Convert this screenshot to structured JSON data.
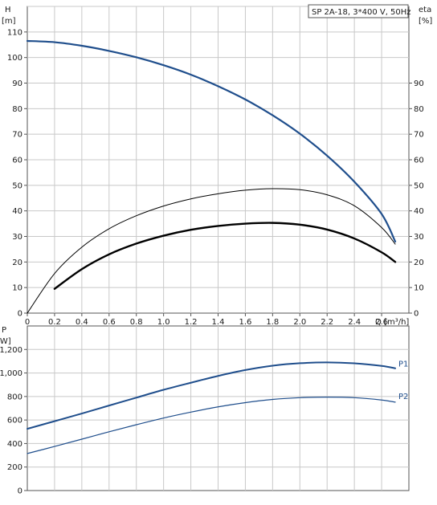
{
  "chart_data": [
    {
      "type": "line",
      "title": "SP 2A-18, 3*400 V, 50Hz",
      "xlabel": "Q [m³/h]",
      "ylabel_left_top": "H",
      "ylabel_left_unit": "[m]",
      "ylabel_right_top": "eta",
      "ylabel_right_unit": "[%]",
      "xlim": [
        0,
        2.8
      ],
      "ylim_left": [
        0,
        120
      ],
      "ylim_right": [
        0,
        120
      ],
      "x_ticks": [
        0,
        0.2,
        0.4,
        0.6,
        0.8,
        1.0,
        1.2,
        1.4,
        1.6,
        1.8,
        2.0,
        2.2,
        2.4,
        2.6
      ],
      "x_tick_labels": [
        "0",
        "0.2",
        "0.4",
        "0.6",
        "0.8",
        "1.0",
        "1.2",
        "1.4",
        "1.6",
        "1.8",
        "2.0",
        "2.2",
        "2.4",
        "2.6"
      ],
      "y_left_ticks": [
        0,
        10,
        20,
        30,
        40,
        50,
        60,
        70,
        80,
        90,
        100,
        110
      ],
      "y_right_ticks": [
        0,
        10,
        20,
        30,
        40,
        50,
        60,
        70,
        80,
        90
      ],
      "grid": true,
      "series": [
        {
          "color": "#1f4e8c",
          "axis": "left",
          "x": [
            0,
            0.2,
            0.4,
            0.6,
            0.8,
            1.0,
            1.2,
            1.4,
            1.6,
            1.8,
            2.0,
            2.2,
            2.4,
            2.6,
            2.7
          ],
          "y": [
            106.5,
            106.0,
            104.6,
            102.6,
            100.1,
            97.0,
            93.3,
            88.8,
            83.6,
            77.4,
            70.2,
            61.6,
            51.4,
            38.8,
            28
          ]
        },
        {
          "color": "#000000",
          "axis": "right",
          "x": [
            0,
            0.2,
            0.4,
            0.6,
            0.8,
            1.0,
            1.2,
            1.4,
            1.6,
            1.8,
            2.0,
            2.2,
            2.4,
            2.6,
            2.7
          ],
          "y": [
            0,
            15.5,
            25.8,
            33.0,
            38.1,
            41.9,
            44.7,
            46.7,
            48.1,
            48.7,
            48.3,
            46.3,
            42.0,
            33.5,
            27
          ]
        },
        {
          "color": "#000000",
          "axis": "right",
          "x": [
            0.2,
            0.4,
            0.6,
            0.8,
            1.0,
            1.2,
            1.4,
            1.6,
            1.8,
            2.0,
            2.2,
            2.4,
            2.6,
            2.7
          ],
          "y": [
            9.5,
            17.2,
            23.0,
            27.2,
            30.3,
            32.6,
            34.1,
            35.0,
            35.3,
            34.6,
            32.7,
            29.2,
            23.8,
            20.0
          ]
        }
      ]
    },
    {
      "type": "line",
      "ylabel_top": "P",
      "ylabel_unit": "[W]",
      "xlim": [
        0,
        2.8
      ],
      "ylim": [
        0,
        1400
      ],
      "y_ticks": [
        0,
        200,
        400,
        600,
        800,
        1000,
        1200
      ],
      "y_tick_labels": [
        "0",
        "200",
        "400",
        "600",
        "800",
        "1,000",
        "1,200"
      ],
      "grid": true,
      "series": [
        {
          "name": "P1",
          "color": "#1f4e8c",
          "x": [
            0,
            0.2,
            0.4,
            0.6,
            0.8,
            1.0,
            1.2,
            1.4,
            1.6,
            1.8,
            2.0,
            2.2,
            2.4,
            2.6,
            2.7
          ],
          "y": [
            525,
            590,
            655,
            723,
            790,
            857,
            917,
            975,
            1025,
            1062,
            1083,
            1090,
            1082,
            1060,
            1040
          ]
        },
        {
          "name": "P2",
          "color": "#1f4e8c",
          "x": [
            0,
            0.2,
            0.4,
            0.6,
            0.8,
            1.0,
            1.2,
            1.4,
            1.6,
            1.8,
            2.0,
            2.2,
            2.4,
            2.6,
            2.7
          ],
          "y": [
            315,
            375,
            437,
            500,
            560,
            617,
            667,
            712,
            748,
            775,
            790,
            795,
            790,
            770,
            752
          ]
        }
      ]
    }
  ]
}
